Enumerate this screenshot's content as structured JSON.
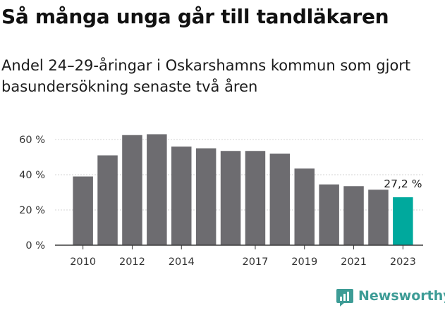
{
  "title": "Så många unga går till tandläkaren",
  "subtitle": "Andel 24–29-åringar i Oskarshamns kommun som gjort basundersökning senaste två åren",
  "brand": "Newsworthy",
  "colors": {
    "bar": "#6d6c70",
    "highlight": "#00a99d",
    "brand": "#3d9c96"
  },
  "chart_data": {
    "type": "bar",
    "title": "Så många unga går till tandläkaren",
    "subtitle": "Andel 24–29-åringar i Oskarshamns kommun som gjort basundersökning senaste två åren",
    "xlabel": "",
    "ylabel": "",
    "categories": [
      "2010",
      "2011",
      "2012",
      "2013",
      "2014",
      "2015",
      "2016",
      "2017",
      "2018",
      "2019",
      "2020",
      "2021",
      "2022",
      "2023"
    ],
    "values": [
      39,
      51,
      62.5,
      63,
      56,
      55,
      53.5,
      53.5,
      52,
      43.5,
      34.5,
      33.5,
      31.5,
      27.2
    ],
    "ylim": [
      0,
      65
    ],
    "yticks": [
      {
        "value": 0,
        "label": "0 %"
      },
      {
        "value": 20,
        "label": "20 %"
      },
      {
        "value": 40,
        "label": "40 %"
      },
      {
        "value": 60,
        "label": "60 %"
      }
    ],
    "xtick_labels": [
      {
        "index": 0,
        "label": "2010"
      },
      {
        "index": 2,
        "label": "2012"
      },
      {
        "index": 4,
        "label": "2014"
      },
      {
        "index": 7,
        "label": "2017"
      },
      {
        "index": 9,
        "label": "2019"
      },
      {
        "index": 11,
        "label": "2021"
      },
      {
        "index": 13,
        "label": "2023"
      }
    ],
    "highlight_index": 13,
    "data_label": {
      "index": 13,
      "text": "27,2 %"
    },
    "grid": true,
    "legend": "none"
  }
}
